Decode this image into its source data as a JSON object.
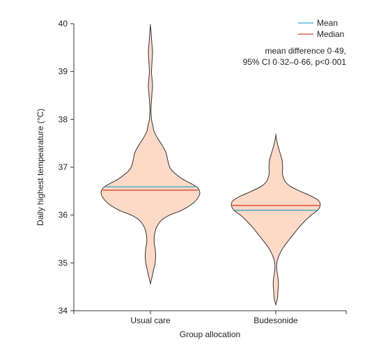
{
  "chart_data": {
    "type": "violin",
    "xlabel": "Group allocation",
    "ylabel": "Daily highest tempearature (°C)",
    "ylim": [
      34,
      40
    ],
    "yticks": [
      "34",
      "35",
      "36",
      "37",
      "38",
      "39",
      "40"
    ],
    "categories": [
      "Usual care",
      "Budesonide"
    ],
    "grid": false,
    "legend_position": "top-right",
    "legend": [
      {
        "label": "Mean",
        "color": "#3aa6c9"
      },
      {
        "label": "Median",
        "color": "#d9452c"
      }
    ],
    "annotation": [
      "mean difference 0·49,",
      "95% CI 0·32–0·66, p<0·001"
    ],
    "fill_color": "#fdd9c7",
    "outline_color": "#333333",
    "series": [
      {
        "category": "Usual care",
        "mean": 36.59,
        "median": 36.52,
        "ymin": 34.57,
        "ymax": 39.97,
        "density_profile": [
          [
            34.57,
            0.0
          ],
          [
            34.7,
            0.03
          ],
          [
            34.85,
            0.06
          ],
          [
            35.0,
            0.09
          ],
          [
            35.15,
            0.1
          ],
          [
            35.3,
            0.09
          ],
          [
            35.45,
            0.07
          ],
          [
            35.6,
            0.08
          ],
          [
            35.75,
            0.12
          ],
          [
            35.9,
            0.22
          ],
          [
            36.0,
            0.37
          ],
          [
            36.1,
            0.6
          ],
          [
            36.25,
            0.82
          ],
          [
            36.4,
            0.93
          ],
          [
            36.5,
            0.94
          ],
          [
            36.6,
            0.87
          ],
          [
            36.75,
            0.62
          ],
          [
            36.9,
            0.44
          ],
          [
            37.0,
            0.37
          ],
          [
            37.15,
            0.33
          ],
          [
            37.3,
            0.3
          ],
          [
            37.45,
            0.23
          ],
          [
            37.6,
            0.14
          ],
          [
            37.75,
            0.07
          ],
          [
            37.9,
            0.04
          ],
          [
            38.0,
            0.02
          ],
          [
            38.2,
            0.01
          ],
          [
            38.4,
            0.02
          ],
          [
            38.55,
            0.03
          ],
          [
            38.7,
            0.04
          ],
          [
            38.85,
            0.03
          ],
          [
            39.0,
            0.02
          ],
          [
            39.2,
            0.03
          ],
          [
            39.4,
            0.04
          ],
          [
            39.55,
            0.03
          ],
          [
            39.7,
            0.02
          ],
          [
            39.85,
            0.01
          ],
          [
            39.97,
            0.0
          ]
        ]
      },
      {
        "category": "Budesonide",
        "mean": 36.1,
        "median": 36.2,
        "ymin": 34.13,
        "ymax": 37.68,
        "density_profile": [
          [
            34.13,
            0.0
          ],
          [
            34.25,
            0.03
          ],
          [
            34.4,
            0.04
          ],
          [
            34.55,
            0.05
          ],
          [
            34.7,
            0.04
          ],
          [
            34.85,
            0.02
          ],
          [
            35.0,
            0.02
          ],
          [
            35.15,
            0.06
          ],
          [
            35.3,
            0.13
          ],
          [
            35.45,
            0.23
          ],
          [
            35.6,
            0.34
          ],
          [
            35.75,
            0.45
          ],
          [
            35.9,
            0.58
          ],
          [
            36.0,
            0.68
          ],
          [
            36.1,
            0.8
          ],
          [
            36.2,
            0.85
          ],
          [
            36.3,
            0.82
          ],
          [
            36.4,
            0.67
          ],
          [
            36.5,
            0.46
          ],
          [
            36.6,
            0.28
          ],
          [
            36.7,
            0.18
          ],
          [
            36.85,
            0.13
          ],
          [
            37.0,
            0.13
          ],
          [
            37.15,
            0.12
          ],
          [
            37.3,
            0.08
          ],
          [
            37.45,
            0.04
          ],
          [
            37.6,
            0.01
          ],
          [
            37.68,
            0.0
          ]
        ]
      }
    ]
  }
}
